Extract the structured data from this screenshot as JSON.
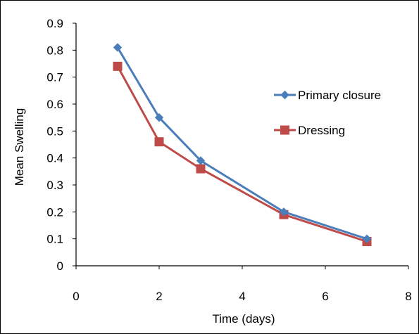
{
  "chart_data": {
    "type": "line",
    "title": "",
    "xlabel": "Time (days)",
    "ylabel": "Mean Swelling",
    "xlim": [
      0,
      8
    ],
    "ylim": [
      0,
      0.9
    ],
    "x_ticks": [
      "0",
      "2",
      "4",
      "6",
      "8"
    ],
    "y_ticks": [
      "0",
      "0.1",
      "0.2",
      "0.3",
      "0.4",
      "0.5",
      "0.6",
      "0.7",
      "0.8",
      "0.9"
    ],
    "grid": false,
    "legend_position": "right",
    "series": [
      {
        "name": "Primary closure",
        "color": "#4a7ebb",
        "marker": "diamond",
        "x": [
          1,
          2,
          3,
          5,
          7
        ],
        "values": [
          0.81,
          0.55,
          0.39,
          0.2,
          0.1
        ]
      },
      {
        "name": "Dressing",
        "color": "#be4b48",
        "marker": "square",
        "x": [
          1,
          2,
          3,
          5,
          7
        ],
        "values": [
          0.74,
          0.46,
          0.36,
          0.19,
          0.09
        ]
      }
    ]
  }
}
